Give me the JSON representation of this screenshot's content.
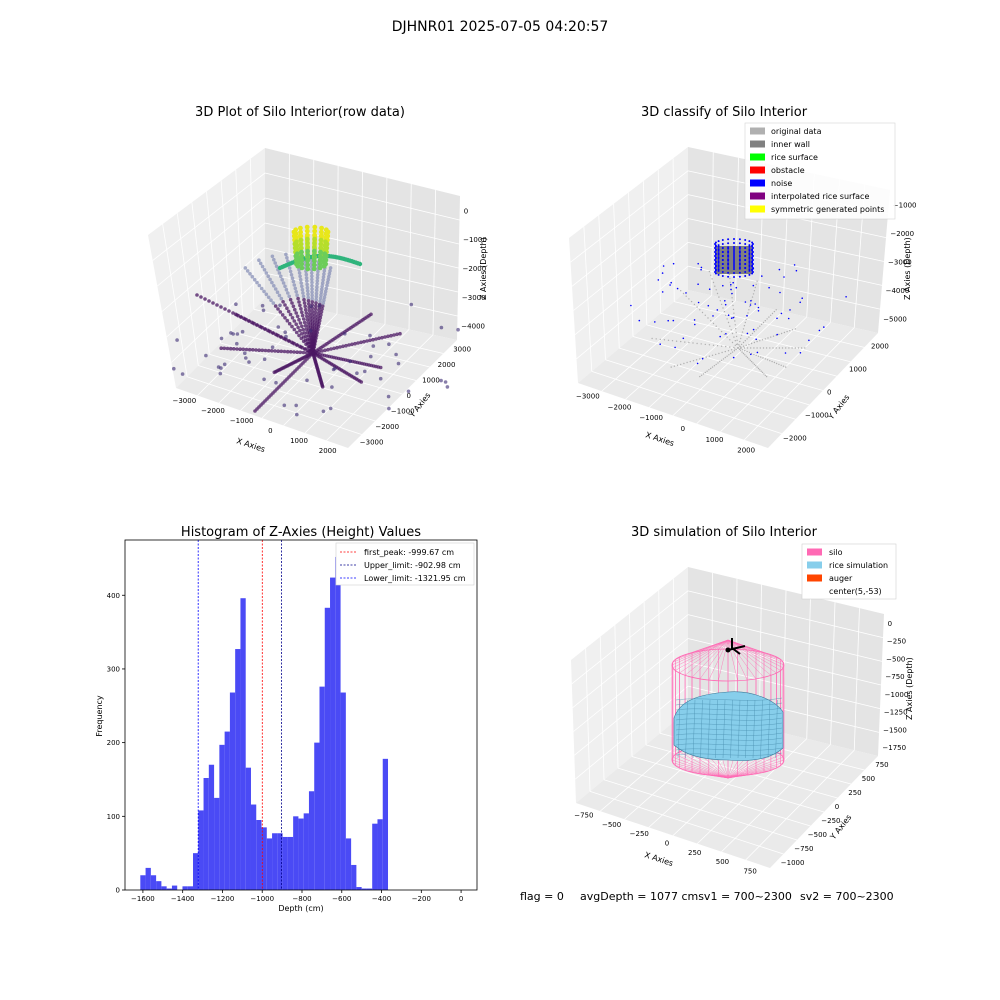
{
  "suptitle": "DJHNR01 2025-07-05 04:20:57",
  "footer": {
    "flag": "flag = 0",
    "avg": "avgDepth = 1077 cmsv1 = 700~2300",
    "sv2": "sv2 = 700~2300"
  },
  "chart_data": [
    {
      "type": "scatter",
      "title": "3D Plot of Silo Interior(row data)",
      "xlabel": "X Axies",
      "ylabel": "Y Axies",
      "zlabel": "Z Axies (Depth)",
      "x_ticks": [
        "−3000",
        "−2000",
        "−1000",
        "0",
        "1000",
        "2000"
      ],
      "y_ticks": [
        "−3000",
        "−2000",
        "−1000",
        "0",
        "1000",
        "2000",
        "3000"
      ],
      "z_ticks": [
        "0",
        "−1000",
        "−2000",
        "−3000",
        "−4000"
      ],
      "colormap": "viridis"
    },
    {
      "type": "scatter",
      "title": "3D classify of Silo Interior",
      "xlabel": "X Axies",
      "ylabel": "Y Axies",
      "zlabel": "Z Axies (Depth)",
      "x_ticks": [
        "−3000",
        "−2000",
        "−1000",
        "0",
        "1000",
        "2000"
      ],
      "y_ticks": [
        "−2000",
        "−1000",
        "0",
        "1000",
        "2000"
      ],
      "z_ticks": [
        "−1000",
        "−2000",
        "−3000",
        "−4000",
        "−5000"
      ],
      "legend_position": "top-right",
      "legend": [
        {
          "label": "original data",
          "color": "#b0b0b0"
        },
        {
          "label": "inner wall",
          "color": "#808080"
        },
        {
          "label": "rice surface",
          "color": "#00ff00"
        },
        {
          "label": "obstacle",
          "color": "#ff0000"
        },
        {
          "label": "noise",
          "color": "#0000ff"
        },
        {
          "label": "interpolated rice surface",
          "color": "#800080"
        },
        {
          "label": "symmetric generated points",
          "color": "#ffff00"
        }
      ]
    },
    {
      "type": "bar",
      "title": "Histogram of Z-Axies (Height) Values",
      "xlabel": "Depth (cm)",
      "ylabel": "Frequency",
      "xlim": [
        -1690,
        80
      ],
      "ylim": [
        0,
        475
      ],
      "bin_width": 26.5,
      "x_ticks": [
        -1600,
        -1400,
        -1200,
        -1000,
        -800,
        -600,
        -400,
        -200,
        0
      ],
      "y_ticks": [
        0,
        100,
        200,
        300,
        400
      ],
      "bar_color": "#4a4af5",
      "bins": [
        [
          -1613.0,
          20
        ],
        [
          -1586.5,
          30
        ],
        [
          -1560.0,
          20
        ],
        [
          -1533.5,
          12
        ],
        [
          -1507.0,
          5
        ],
        [
          -1480.5,
          2
        ],
        [
          -1454.0,
          6
        ],
        [
          -1427.5,
          0
        ],
        [
          -1401.0,
          5
        ],
        [
          -1374.5,
          5
        ],
        [
          -1348.0,
          50
        ],
        [
          -1321.5,
          108
        ],
        [
          -1295.0,
          152
        ],
        [
          -1268.5,
          170
        ],
        [
          -1242.0,
          125
        ],
        [
          -1215.5,
          197
        ],
        [
          -1189.0,
          215
        ],
        [
          -1162.5,
          268
        ],
        [
          -1136.0,
          327
        ],
        [
          -1109.5,
          396
        ],
        [
          -1083.0,
          166
        ],
        [
          -1056.5,
          116
        ],
        [
          -1030.0,
          95
        ],
        [
          -1003.5,
          85
        ],
        [
          -977.0,
          70
        ],
        [
          -950.5,
          77
        ],
        [
          -924.0,
          77
        ],
        [
          -897.5,
          72
        ],
        [
          -871.0,
          72
        ],
        [
          -844.5,
          100
        ],
        [
          -818.0,
          97
        ],
        [
          -791.5,
          104
        ],
        [
          -765.0,
          134
        ],
        [
          -738.5,
          200
        ],
        [
          -712.0,
          276
        ],
        [
          -685.5,
          383
        ],
        [
          -659.0,
          424
        ],
        [
          -632.5,
          452
        ],
        [
          -606.0,
          268
        ],
        [
          -579.5,
          70
        ],
        [
          -553.0,
          34
        ],
        [
          -526.5,
          4
        ],
        [
          -500.0,
          2
        ],
        [
          -473.5,
          2
        ],
        [
          -447.0,
          90
        ],
        [
          -420.5,
          96
        ],
        [
          -394.0,
          178
        ]
      ],
      "vlines": [
        {
          "label": "first_peak: -999.67 cm",
          "x": -999.67,
          "color": "#ff0000"
        },
        {
          "label": "Upper_limit: -902.98 cm",
          "x": -902.98,
          "color": "#00008b"
        },
        {
          "label": "Lower_limit: -1321.95 cm",
          "x": -1321.95,
          "color": "#0000ff"
        }
      ],
      "legend_position": "top-right"
    },
    {
      "type": "surface",
      "title": "3D simulation of Silo Interior",
      "xlabel": "X Axies",
      "ylabel": "Y Axies",
      "zlabel": "Z Axies (Depth)",
      "x_ticks": [
        "−750",
        "−500",
        "−250",
        "0",
        "250",
        "500",
        "750"
      ],
      "y_ticks": [
        "−1000",
        "−750",
        "−500",
        "−250",
        "0",
        "250",
        "500",
        "750"
      ],
      "z_ticks": [
        "0",
        "−250",
        "−500",
        "−750",
        "−1000",
        "−1250",
        "−1500",
        "−1750"
      ],
      "legend_position": "top-right",
      "legend": [
        {
          "label": "silo",
          "color": "#ff69b4"
        },
        {
          "label": "rice simulation",
          "color": "#87ceeb"
        },
        {
          "label": "auger",
          "color": "#ff4500"
        },
        {
          "label": "center(5,-53)",
          "color": "#ffffff"
        }
      ]
    }
  ]
}
